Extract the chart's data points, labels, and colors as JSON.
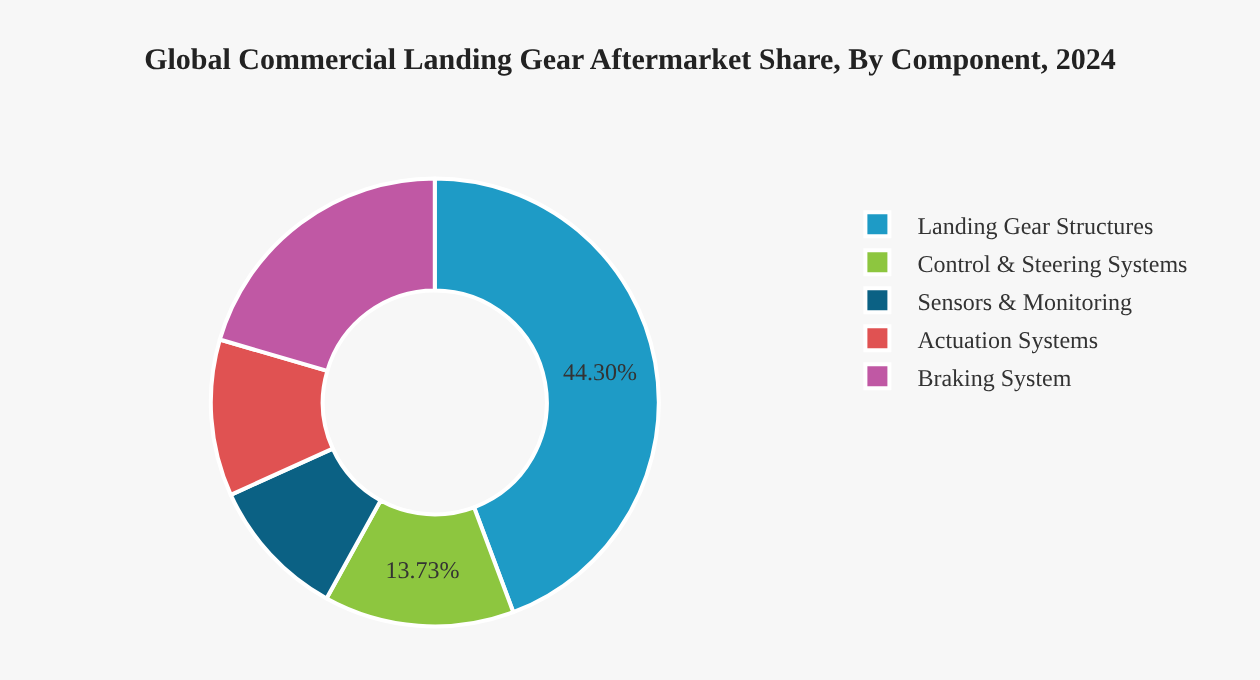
{
  "chart_data": {
    "type": "donut",
    "title": "Global Commercial Landing Gear Aftermarket Share, By Component, 2024",
    "categories": [
      "Landing Gear Structures",
      "Control & Steering Systems",
      "Sensors & Monitoring",
      "Actuation Systems",
      "Braking System"
    ],
    "values": [
      44.3,
      13.73,
      10.2,
      11.3,
      20.47
    ],
    "colors": [
      "#1e9bc6",
      "#8dc63f",
      "#0b6184",
      "#e05252",
      "#c058a4"
    ],
    "value_labels": [
      "44.30%",
      "13.73%",
      null,
      null,
      null
    ],
    "legend": "top right"
  }
}
